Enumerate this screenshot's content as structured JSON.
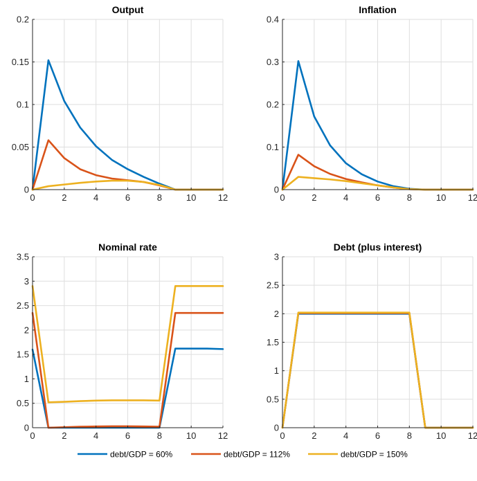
{
  "chart_data": [
    {
      "type": "line",
      "title": "Output",
      "xlabel": "",
      "ylabel": "",
      "xlim": [
        0,
        12
      ],
      "ylim": [
        0,
        0.2
      ],
      "xticks": [
        0,
        2,
        4,
        6,
        8,
        10,
        12
      ],
      "yticks": [
        0,
        0.05,
        0.1,
        0.15,
        0.2
      ],
      "xtick_labels": [
        "0",
        "2",
        "4",
        "6",
        "8",
        "10",
        "12"
      ],
      "ytick_labels": [
        "0",
        "0.05",
        "0.1",
        "0.15",
        "0.2"
      ],
      "grid": true,
      "x": [
        0,
        1,
        2,
        3,
        4,
        5,
        6,
        7,
        8,
        9,
        10,
        11,
        12
      ],
      "series": [
        {
          "name": "debt/GDP = 60%",
          "color": "#0072BD",
          "values": [
            0,
            0.152,
            0.104,
            0.073,
            0.051,
            0.035,
            0.024,
            0.015,
            0.007,
            0,
            0,
            0,
            0
          ]
        },
        {
          "name": "debt/GDP = 112%",
          "color": "#D95319",
          "values": [
            0,
            0.058,
            0.037,
            0.024,
            0.017,
            0.013,
            0.011,
            0.009,
            0.005,
            0,
            0,
            0,
            0
          ]
        },
        {
          "name": "debt/GDP = 150%",
          "color": "#EDB120",
          "values": [
            0,
            0.004,
            0.006,
            0.008,
            0.0095,
            0.0105,
            0.0105,
            0.009,
            0.0055,
            0,
            0,
            0,
            0
          ]
        }
      ]
    },
    {
      "type": "line",
      "title": "Inflation",
      "xlabel": "",
      "ylabel": "",
      "xlim": [
        0,
        12
      ],
      "ylim": [
        0,
        0.4
      ],
      "xticks": [
        0,
        2,
        4,
        6,
        8,
        10,
        12
      ],
      "yticks": [
        0,
        0.1,
        0.2,
        0.3,
        0.4
      ],
      "xtick_labels": [
        "0",
        "2",
        "4",
        "6",
        "8",
        "10",
        "12"
      ],
      "ytick_labels": [
        "0",
        "0.1",
        "0.2",
        "0.3",
        "0.4"
      ],
      "grid": true,
      "x": [
        0,
        1,
        2,
        3,
        4,
        5,
        6,
        7,
        8,
        9,
        10,
        11,
        12
      ],
      "series": [
        {
          "name": "debt/GDP = 60%",
          "color": "#0072BD",
          "values": [
            0,
            0.302,
            0.172,
            0.104,
            0.062,
            0.036,
            0.019,
            0.008,
            0.002,
            0,
            0,
            0,
            0
          ]
        },
        {
          "name": "debt/GDP = 112%",
          "color": "#D95319",
          "values": [
            0,
            0.082,
            0.055,
            0.037,
            0.025,
            0.017,
            0.01,
            0.005,
            0.001,
            0,
            0,
            0,
            0
          ]
        },
        {
          "name": "debt/GDP = 150%",
          "color": "#EDB120",
          "values": [
            0,
            0.03,
            0.027,
            0.024,
            0.02,
            0.015,
            0.01,
            0.005,
            0.001,
            0,
            0,
            0,
            0
          ]
        }
      ]
    },
    {
      "type": "line",
      "title": "Nominal rate",
      "xlabel": "",
      "ylabel": "",
      "xlim": [
        0,
        12
      ],
      "ylim": [
        0,
        3.5
      ],
      "xticks": [
        0,
        2,
        4,
        6,
        8,
        10,
        12
      ],
      "yticks": [
        0,
        0.5,
        1,
        1.5,
        2,
        2.5,
        3,
        3.5
      ],
      "xtick_labels": [
        "0",
        "2",
        "4",
        "6",
        "8",
        "10",
        "12"
      ],
      "ytick_labels": [
        "0",
        "0.5",
        "1",
        "1.5",
        "2",
        "2.5",
        "3",
        "3.5"
      ],
      "grid": true,
      "x": [
        0,
        1,
        2,
        3,
        4,
        5,
        6,
        7,
        8,
        9,
        10,
        11,
        12
      ],
      "series": [
        {
          "name": "debt/GDP = 60%",
          "color": "#0072BD",
          "values": [
            1.6,
            0,
            0,
            0,
            0,
            0,
            0,
            0,
            0,
            1.62,
            1.62,
            1.62,
            1.61
          ]
        },
        {
          "name": "debt/GDP = 112%",
          "color": "#D95319",
          "values": [
            2.35,
            0,
            0.01,
            0.02,
            0.025,
            0.03,
            0.03,
            0.025,
            0.02,
            2.35,
            2.35,
            2.35,
            2.35
          ]
        },
        {
          "name": "debt/GDP = 150%",
          "color": "#EDB120",
          "values": [
            2.9,
            0.52,
            0.53,
            0.545,
            0.555,
            0.56,
            0.56,
            0.56,
            0.555,
            2.9,
            2.9,
            2.9,
            2.9
          ]
        }
      ]
    },
    {
      "type": "line",
      "title": "Debt (plus interest)",
      "xlabel": "",
      "ylabel": "",
      "xlim": [
        0,
        12
      ],
      "ylim": [
        0,
        3
      ],
      "xticks": [
        0,
        2,
        4,
        6,
        8,
        10,
        12
      ],
      "yticks": [
        0,
        0.5,
        1,
        1.5,
        2,
        2.5,
        3
      ],
      "xtick_labels": [
        "0",
        "2",
        "4",
        "6",
        "8",
        "10",
        "12"
      ],
      "ytick_labels": [
        "0",
        "0.5",
        "1",
        "1.5",
        "2",
        "2.5",
        "3"
      ],
      "grid": true,
      "x": [
        0,
        1,
        2,
        3,
        4,
        5,
        6,
        7,
        8,
        9,
        10,
        11,
        12
      ],
      "series": [
        {
          "name": "debt/GDP = 60%",
          "color": "#0072BD",
          "values": [
            0,
            2.0,
            2.0,
            2.0,
            2.0,
            2.0,
            2.0,
            2.0,
            2.0,
            0,
            0,
            0,
            0
          ]
        },
        {
          "name": "debt/GDP = 112%",
          "color": "#D95319",
          "values": [
            0,
            2.01,
            2.01,
            2.01,
            2.01,
            2.01,
            2.01,
            2.01,
            2.01,
            0,
            0,
            0,
            0
          ]
        },
        {
          "name": "debt/GDP = 150%",
          "color": "#EDB120",
          "values": [
            0,
            2.02,
            2.02,
            2.02,
            2.02,
            2.02,
            2.02,
            2.02,
            2.02,
            0,
            0,
            0,
            0
          ]
        }
      ]
    }
  ],
  "legend": {
    "placement": "bottom",
    "items": [
      {
        "label": "debt/GDP = 60%",
        "color": "#0072BD"
      },
      {
        "label": "debt/GDP = 112%",
        "color": "#D95319"
      },
      {
        "label": "debt/GDP = 150%",
        "color": "#EDB120"
      }
    ]
  }
}
